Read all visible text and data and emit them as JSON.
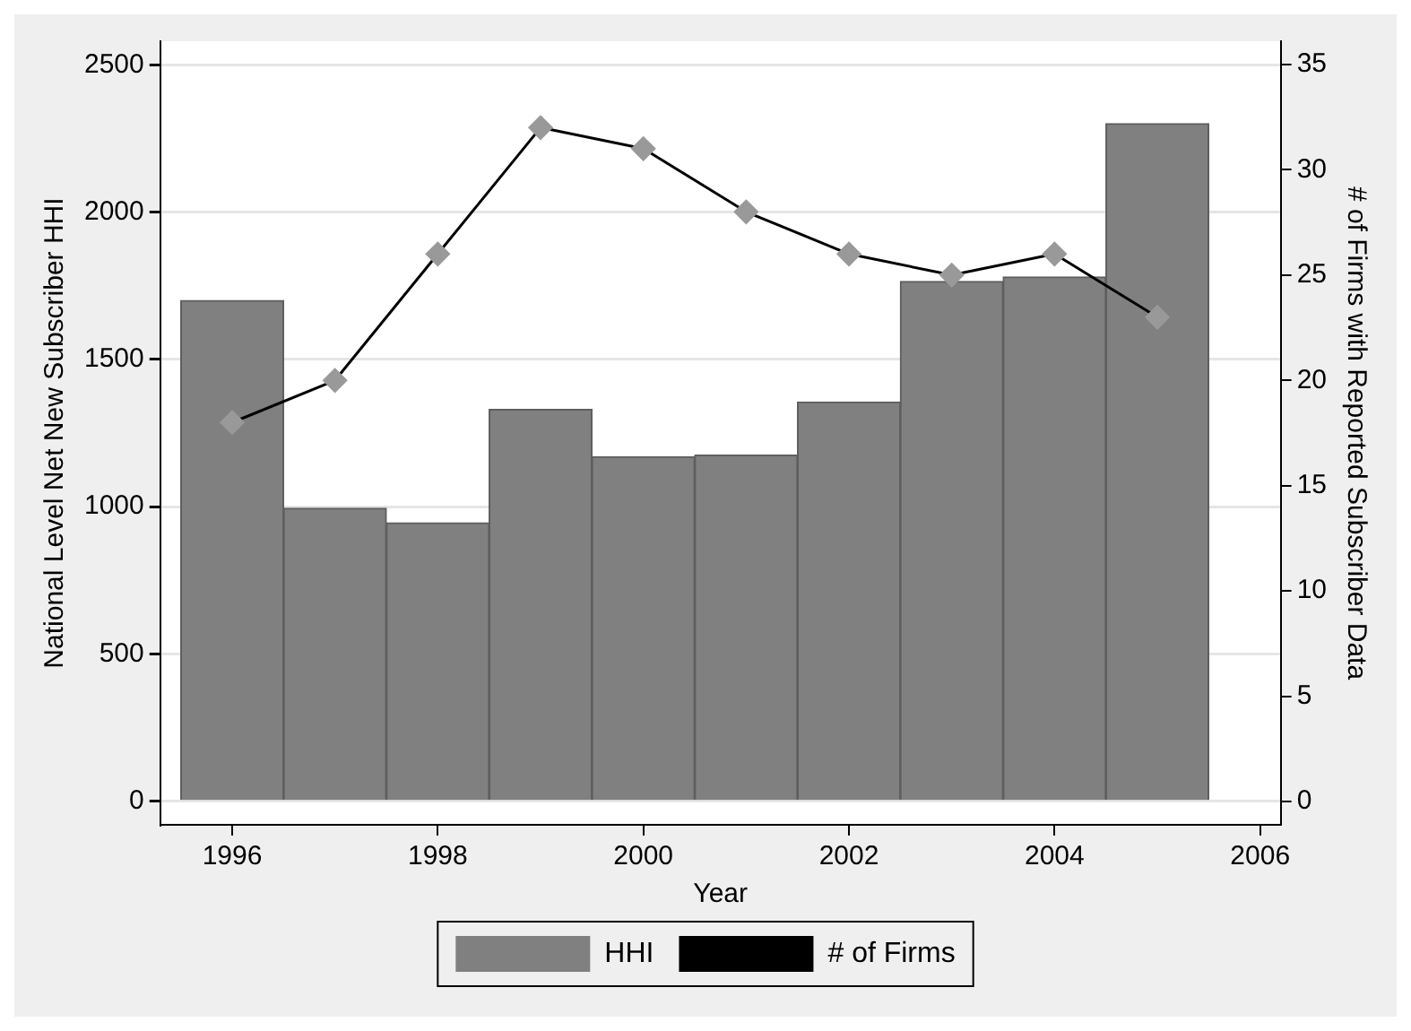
{
  "chart_data": {
    "type": "bar",
    "xlabel": "Year",
    "ylabel": "National Level Net New Subscriber HHI",
    "y2label": "# of Firms with Reported Subscriber Data",
    "x": [
      1996,
      1997,
      1998,
      1999,
      2000,
      2001,
      2002,
      2003,
      2004,
      2005
    ],
    "series": [
      {
        "name": "HHI",
        "color": "#808080",
        "values": [
          1700,
          995,
          945,
          1330,
          1170,
          1175,
          1355,
          1765,
          1780,
          2300
        ]
      },
      {
        "name": "# of Firms",
        "type": "line",
        "axis": "y2",
        "color": "#000000",
        "marker": "diamond",
        "values": [
          18,
          20,
          26,
          32,
          31,
          28,
          26,
          25,
          26,
          23
        ]
      }
    ],
    "xlim": [
      1995.3,
      2006.2
    ],
    "xticks": [
      1996,
      1998,
      2000,
      2002,
      2004,
      2006
    ],
    "ylim": [
      -80,
      2580
    ],
    "yticks": [
      0,
      500,
      1000,
      1500,
      2000,
      2500
    ],
    "y2lim": [
      -1.1,
      36.1
    ],
    "y2ticks": [
      0,
      5,
      10,
      15,
      20,
      25,
      30,
      35
    ],
    "grid": "y",
    "legend": "bottom"
  }
}
